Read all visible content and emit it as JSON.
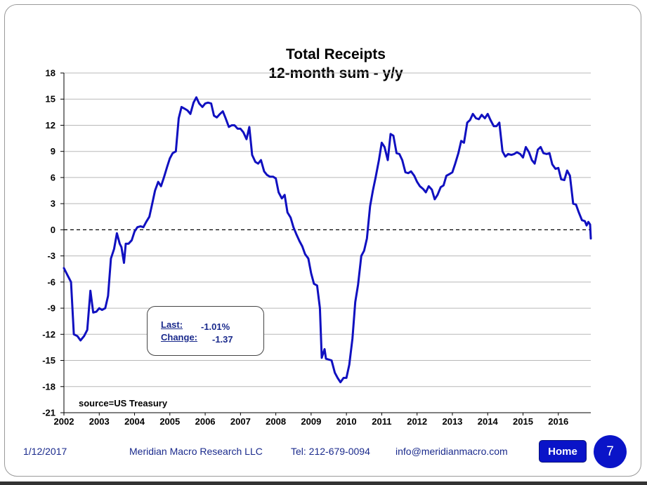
{
  "chart_data": {
    "type": "line",
    "title": "Total Receipts",
    "subtitle": "12-month sum -  y/y",
    "xlabel": "",
    "ylabel": "",
    "xlim": [
      2002.0,
      2016.92
    ],
    "ylim": [
      -21,
      18
    ],
    "y_ticks": [
      "18",
      "15",
      "12",
      "9",
      "6",
      "3",
      "0",
      "-3",
      "-6",
      "-9",
      "-12",
      "-15",
      "-18",
      "-21"
    ],
    "x_ticks": [
      "2002",
      "2003",
      "2004",
      "2005",
      "2006",
      "2007",
      "2008",
      "2009",
      "2010",
      "2011",
      "2012",
      "2013",
      "2014",
      "2015",
      "2016"
    ],
    "grid": true,
    "reference_line": 0,
    "line_color": "#1010c0",
    "series": [
      {
        "name": "",
        "points": [
          [
            2002.0,
            -4.4
          ],
          [
            2002.1,
            -5.2
          ],
          [
            2002.2,
            -6.0
          ],
          [
            2002.28,
            -12.0
          ],
          [
            2002.38,
            -12.2
          ],
          [
            2002.47,
            -12.7
          ],
          [
            2002.57,
            -12.2
          ],
          [
            2002.66,
            -11.5
          ],
          [
            2002.75,
            -7.0
          ],
          [
            2002.83,
            -9.5
          ],
          [
            2002.92,
            -9.4
          ],
          [
            2003.0,
            -9.0
          ],
          [
            2003.08,
            -9.2
          ],
          [
            2003.17,
            -9.0
          ],
          [
            2003.25,
            -7.6
          ],
          [
            2003.33,
            -3.3
          ],
          [
            2003.42,
            -2.2
          ],
          [
            2003.5,
            -0.4
          ],
          [
            2003.58,
            -1.6
          ],
          [
            2003.63,
            -2.0
          ],
          [
            2003.7,
            -3.8
          ],
          [
            2003.75,
            -1.6
          ],
          [
            2003.83,
            -1.6
          ],
          [
            2003.92,
            -1.2
          ],
          [
            2004.0,
            -0.2
          ],
          [
            2004.08,
            0.3
          ],
          [
            2004.17,
            0.4
          ],
          [
            2004.25,
            0.3
          ],
          [
            2004.33,
            0.9
          ],
          [
            2004.42,
            1.5
          ],
          [
            2004.5,
            3.0
          ],
          [
            2004.58,
            4.5
          ],
          [
            2004.67,
            5.5
          ],
          [
            2004.75,
            5.0
          ],
          [
            2004.83,
            6.0
          ],
          [
            2004.92,
            7.2
          ],
          [
            2005.0,
            8.2
          ],
          [
            2005.08,
            8.8
          ],
          [
            2005.17,
            9.0
          ],
          [
            2005.25,
            12.8
          ],
          [
            2005.33,
            14.1
          ],
          [
            2005.42,
            13.9
          ],
          [
            2005.5,
            13.7
          ],
          [
            2005.58,
            13.3
          ],
          [
            2005.67,
            14.6
          ],
          [
            2005.75,
            15.2
          ],
          [
            2005.83,
            14.5
          ],
          [
            2005.92,
            14.1
          ],
          [
            2006.0,
            14.5
          ],
          [
            2006.08,
            14.6
          ],
          [
            2006.17,
            14.5
          ],
          [
            2006.25,
            13.1
          ],
          [
            2006.33,
            12.9
          ],
          [
            2006.42,
            13.3
          ],
          [
            2006.5,
            13.6
          ],
          [
            2006.58,
            12.8
          ],
          [
            2006.67,
            11.8
          ],
          [
            2006.75,
            12.0
          ],
          [
            2006.83,
            12.0
          ],
          [
            2006.92,
            11.6
          ],
          [
            2007.0,
            11.6
          ],
          [
            2007.08,
            11.2
          ],
          [
            2007.17,
            10.4
          ],
          [
            2007.25,
            11.8
          ],
          [
            2007.33,
            8.6
          ],
          [
            2007.42,
            7.8
          ],
          [
            2007.5,
            7.6
          ],
          [
            2007.58,
            8.0
          ],
          [
            2007.67,
            6.7
          ],
          [
            2007.75,
            6.3
          ],
          [
            2007.83,
            6.1
          ],
          [
            2007.92,
            6.1
          ],
          [
            2008.0,
            5.9
          ],
          [
            2008.08,
            4.3
          ],
          [
            2008.17,
            3.6
          ],
          [
            2008.25,
            4.0
          ],
          [
            2008.33,
            2.0
          ],
          [
            2008.42,
            1.4
          ],
          [
            2008.5,
            0.3
          ],
          [
            2008.58,
            -0.5
          ],
          [
            2008.67,
            -1.3
          ],
          [
            2008.75,
            -1.9
          ],
          [
            2008.83,
            -2.8
          ],
          [
            2008.92,
            -3.3
          ],
          [
            2009.0,
            -5.0
          ],
          [
            2009.08,
            -6.2
          ],
          [
            2009.17,
            -6.4
          ],
          [
            2009.25,
            -9.0
          ],
          [
            2009.3,
            -14.7
          ],
          [
            2009.38,
            -13.7
          ],
          [
            2009.42,
            -14.8
          ],
          [
            2009.5,
            -14.9
          ],
          [
            2009.58,
            -15.0
          ],
          [
            2009.67,
            -16.4
          ],
          [
            2009.75,
            -17.0
          ],
          [
            2009.83,
            -17.5
          ],
          [
            2009.92,
            -17.0
          ],
          [
            2010.0,
            -17.0
          ],
          [
            2010.08,
            -15.5
          ],
          [
            2010.17,
            -12.5
          ],
          [
            2010.25,
            -8.3
          ],
          [
            2010.33,
            -6.3
          ],
          [
            2010.42,
            -3.0
          ],
          [
            2010.5,
            -2.4
          ],
          [
            2010.58,
            -1.0
          ],
          [
            2010.67,
            2.7
          ],
          [
            2010.75,
            4.5
          ],
          [
            2010.83,
            6.1
          ],
          [
            2010.92,
            8.0
          ],
          [
            2011.0,
            10.0
          ],
          [
            2011.08,
            9.5
          ],
          [
            2011.17,
            8.0
          ],
          [
            2011.25,
            11.0
          ],
          [
            2011.33,
            10.8
          ],
          [
            2011.42,
            8.8
          ],
          [
            2011.5,
            8.7
          ],
          [
            2011.58,
            8.0
          ],
          [
            2011.67,
            6.6
          ],
          [
            2011.75,
            6.5
          ],
          [
            2011.83,
            6.7
          ],
          [
            2011.92,
            6.2
          ],
          [
            2012.0,
            5.5
          ],
          [
            2012.08,
            5.0
          ],
          [
            2012.17,
            4.7
          ],
          [
            2012.25,
            4.3
          ],
          [
            2012.33,
            5.0
          ],
          [
            2012.42,
            4.6
          ],
          [
            2012.5,
            3.5
          ],
          [
            2012.58,
            4.0
          ],
          [
            2012.67,
            4.9
          ],
          [
            2012.75,
            5.1
          ],
          [
            2012.83,
            6.2
          ],
          [
            2012.92,
            6.4
          ],
          [
            2013.0,
            6.6
          ],
          [
            2013.08,
            7.6
          ],
          [
            2013.17,
            8.8
          ],
          [
            2013.25,
            10.2
          ],
          [
            2013.33,
            10.0
          ],
          [
            2013.42,
            12.3
          ],
          [
            2013.5,
            12.6
          ],
          [
            2013.58,
            13.3
          ],
          [
            2013.67,
            12.8
          ],
          [
            2013.75,
            12.7
          ],
          [
            2013.83,
            13.2
          ],
          [
            2013.92,
            12.8
          ],
          [
            2014.0,
            13.3
          ],
          [
            2014.08,
            12.6
          ],
          [
            2014.17,
            11.9
          ],
          [
            2014.25,
            11.9
          ],
          [
            2014.33,
            12.3
          ],
          [
            2014.42,
            9.0
          ],
          [
            2014.5,
            8.4
          ],
          [
            2014.58,
            8.7
          ],
          [
            2014.67,
            8.6
          ],
          [
            2014.75,
            8.7
          ],
          [
            2014.83,
            8.9
          ],
          [
            2014.92,
            8.7
          ],
          [
            2015.0,
            8.3
          ],
          [
            2015.08,
            9.5
          ],
          [
            2015.17,
            8.9
          ],
          [
            2015.25,
            8.0
          ],
          [
            2015.33,
            7.6
          ],
          [
            2015.42,
            9.2
          ],
          [
            2015.5,
            9.5
          ],
          [
            2015.58,
            8.8
          ],
          [
            2015.67,
            8.7
          ],
          [
            2015.75,
            8.8
          ],
          [
            2015.83,
            7.5
          ],
          [
            2015.92,
            7.0
          ],
          [
            2016.0,
            7.1
          ],
          [
            2016.08,
            5.8
          ],
          [
            2016.17,
            5.7
          ],
          [
            2016.25,
            6.8
          ],
          [
            2016.33,
            6.2
          ],
          [
            2016.42,
            3.0
          ],
          [
            2016.5,
            2.9
          ],
          [
            2016.58,
            2.0
          ],
          [
            2016.67,
            1.1
          ],
          [
            2016.75,
            1.0
          ],
          [
            2016.8,
            0.5
          ],
          [
            2016.85,
            0.9
          ],
          [
            2016.9,
            0.6
          ],
          [
            2016.92,
            -1.0
          ]
        ]
      }
    ]
  },
  "source_note": "source=US Treasury",
  "info_box": {
    "last_label": "Last:",
    "last_value": "-1.01%",
    "change_label": "Change:",
    "change_value": "-1.37"
  },
  "footer": {
    "date": "1/12/2017",
    "company": "Meridian Macro Research LLC",
    "tel": "Tel: 212-679-0094",
    "email": "info@meridianmacro.com",
    "home_label": "Home",
    "page_number": "7"
  }
}
